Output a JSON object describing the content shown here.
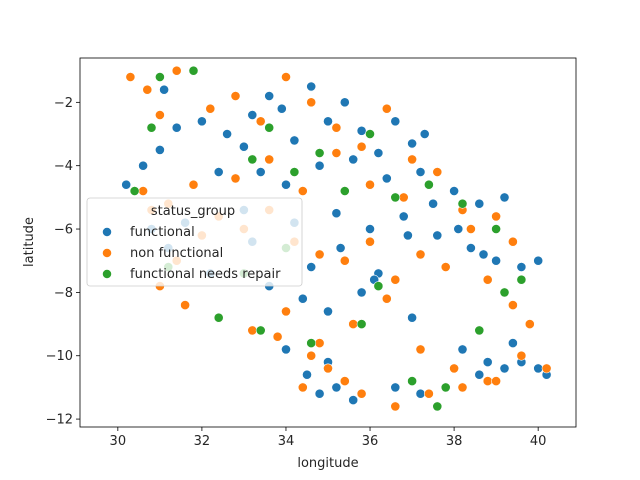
{
  "chart_data": {
    "type": "scatter",
    "title": "",
    "xlabel": "longitude",
    "ylabel": "latitude",
    "xlim": [
      29.1,
      40.9
    ],
    "ylim": [
      -12.25,
      -0.6
    ],
    "xticks": [
      30,
      32,
      34,
      36,
      38,
      40
    ],
    "yticks": [
      -2,
      -4,
      -6,
      -8,
      -10,
      -12
    ],
    "grid": false,
    "legend": {
      "title": "status_group",
      "placement": "center-left",
      "entries": [
        "functional",
        "non functional",
        "functional needs repair"
      ]
    },
    "colors": {
      "functional": "#1f77b4",
      "non functional": "#ff7f0e",
      "functional needs repair": "#2ca02c"
    },
    "series": [
      {
        "name": "functional",
        "x": [
          30.2,
          30.6,
          31.0,
          31.4,
          31.1,
          32.0,
          32.6,
          33.0,
          33.2,
          33.6,
          33.9,
          34.2,
          34.6,
          35.0,
          35.4,
          35.8,
          36.2,
          36.6,
          37.0,
          37.3,
          33.4,
          34.0,
          34.8,
          35.6,
          36.4,
          37.2,
          38.0,
          38.6,
          39.2,
          33.0,
          34.2,
          35.2,
          36.0,
          36.8,
          37.6,
          38.4,
          39.0,
          39.6,
          40.0,
          32.2,
          33.6,
          34.4,
          35.0,
          35.8,
          36.2,
          37.0,
          38.2,
          38.8,
          39.4,
          34.0,
          34.5,
          35.0,
          34.8,
          35.2,
          35.6,
          36.6,
          37.2,
          37.8,
          38.6,
          39.2,
          39.6,
          40.0,
          40.2,
          30.8,
          31.2,
          31.6,
          32.4,
          33.2,
          34.6,
          35.3,
          36.1,
          36.9,
          37.5,
          38.1,
          38.7
        ],
        "y": [
          -4.6,
          -4.0,
          -3.5,
          -2.8,
          -1.6,
          -2.6,
          -3.0,
          -3.4,
          -2.4,
          -1.8,
          -2.2,
          -3.2,
          -1.5,
          -2.6,
          -2.0,
          -2.9,
          -3.6,
          -2.6,
          -3.3,
          -3.0,
          -4.2,
          -4.6,
          -4.0,
          -3.8,
          -4.4,
          -4.2,
          -4.8,
          -5.2,
          -5.0,
          -5.4,
          -5.8,
          -5.5,
          -6.0,
          -5.6,
          -6.2,
          -6.6,
          -7.0,
          -7.2,
          -7.0,
          -7.4,
          -7.8,
          -8.2,
          -8.6,
          -8.0,
          -7.4,
          -8.8,
          -9.8,
          -10.2,
          -9.6,
          -9.8,
          -10.6,
          -10.2,
          -11.2,
          -11.0,
          -11.4,
          -11.0,
          -11.2,
          -11.0,
          -10.6,
          -10.4,
          -10.2,
          -10.4,
          -10.6,
          -6.0,
          -6.6,
          -5.8,
          -4.2,
          -6.4,
          -7.2,
          -6.6,
          -7.6,
          -6.2,
          -5.2,
          -6.0,
          -6.8
        ]
      },
      {
        "name": "non functional",
        "x": [
          30.3,
          30.7,
          31.0,
          31.4,
          32.2,
          32.8,
          33.4,
          34.0,
          34.6,
          35.2,
          35.8,
          36.4,
          37.0,
          30.6,
          31.2,
          31.8,
          32.4,
          33.0,
          33.6,
          34.2,
          34.8,
          35.4,
          36.0,
          36.6,
          37.2,
          37.8,
          38.4,
          39.0,
          39.4,
          31.0,
          31.6,
          32.4,
          33.2,
          34.0,
          34.8,
          35.6,
          36.4,
          37.2,
          38.0,
          38.8,
          39.6,
          40.2,
          30.8,
          31.4,
          32.0,
          32.8,
          33.6,
          34.4,
          35.2,
          36.0,
          36.8,
          37.6,
          38.2,
          38.8,
          39.4,
          39.8,
          34.4,
          35.0,
          35.8,
          36.6,
          37.4,
          38.2,
          39.0,
          33.8,
          34.6,
          35.4
        ],
        "y": [
          -1.2,
          -1.6,
          -2.4,
          -1.0,
          -2.2,
          -1.8,
          -2.6,
          -1.2,
          -2.0,
          -2.8,
          -3.4,
          -2.2,
          -3.8,
          -4.8,
          -5.2,
          -4.6,
          -5.6,
          -6.0,
          -5.4,
          -6.4,
          -6.8,
          -7.0,
          -6.4,
          -7.6,
          -6.8,
          -7.2,
          -6.0,
          -5.6,
          -6.4,
          -7.8,
          -8.4,
          -8.8,
          -9.2,
          -8.6,
          -9.6,
          -9.0,
          -8.2,
          -9.8,
          -10.4,
          -10.8,
          -10.0,
          -10.4,
          -5.4,
          -7.0,
          -6.2,
          -4.4,
          -3.8,
          -4.8,
          -3.6,
          -4.6,
          -5.0,
          -4.2,
          -5.4,
          -7.6,
          -8.4,
          -9.0,
          -11.0,
          -10.4,
          -11.2,
          -11.6,
          -11.2,
          -11.0,
          -10.8,
          -9.4,
          -10.0,
          -10.8
        ]
      },
      {
        "name": "functional needs repair",
        "x": [
          31.0,
          31.8,
          30.4,
          30.8,
          33.2,
          33.6,
          34.2,
          34.8,
          35.4,
          36.0,
          36.6,
          37.4,
          38.2,
          39.0,
          39.6,
          32.4,
          33.4,
          34.6,
          35.8,
          37.0,
          37.8,
          38.6,
          39.2,
          33.0,
          31.2,
          34.0,
          36.2,
          37.6
        ],
        "y": [
          -1.2,
          -1.0,
          -4.8,
          -2.8,
          -3.8,
          -2.8,
          -4.2,
          -3.6,
          -4.8,
          -3.0,
          -5.0,
          -4.6,
          -5.2,
          -6.0,
          -7.6,
          -8.8,
          -9.2,
          -9.6,
          -9.0,
          -10.8,
          -11.0,
          -9.2,
          -8.0,
          -7.4,
          -7.2,
          -6.6,
          -7.8,
          -11.6
        ]
      }
    ]
  }
}
